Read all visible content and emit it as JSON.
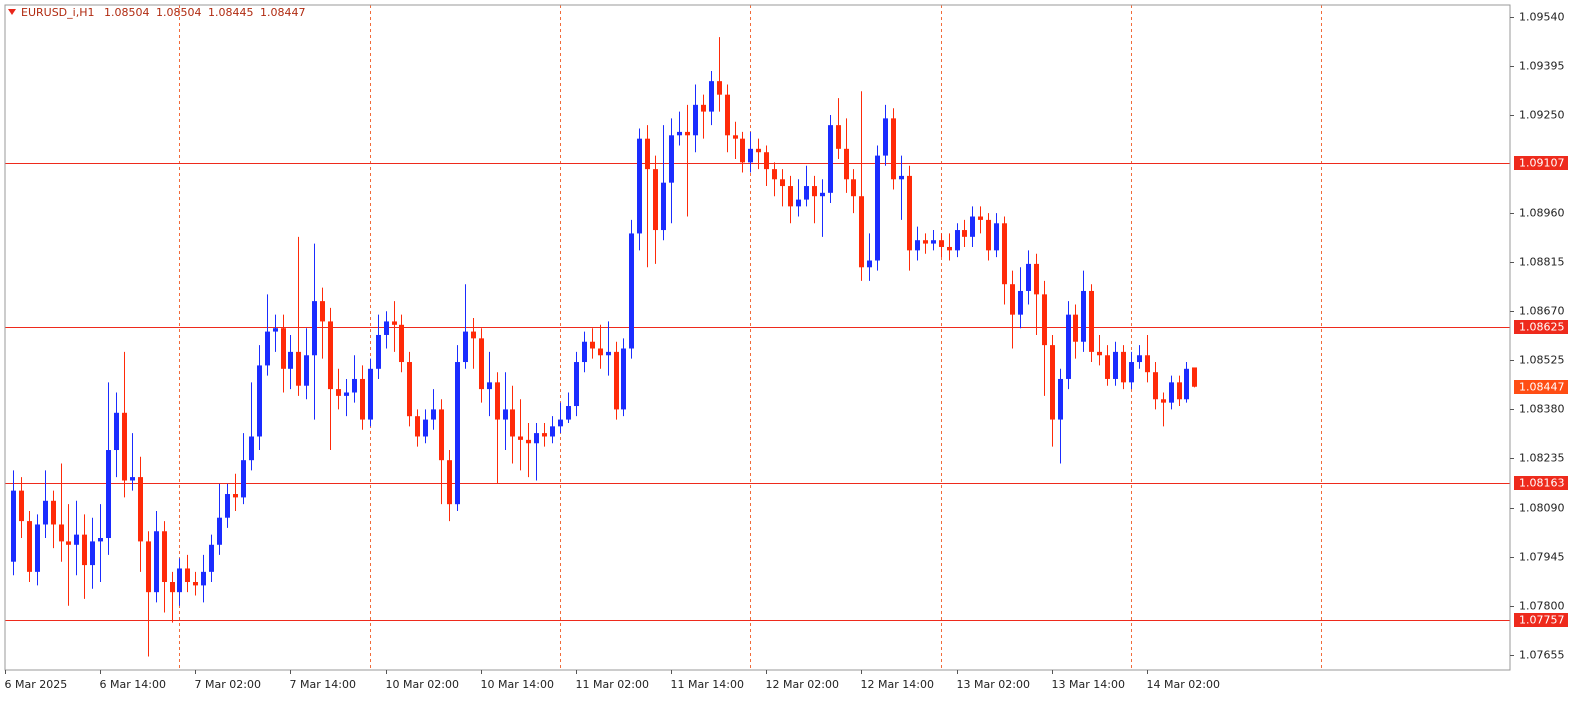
{
  "chart_data": {
    "type": "candlestick",
    "symbol": "EURUSD_i,H1",
    "open": [
      1.0793,
      1.0814,
      1.0805,
      1.079,
      1.0804,
      1.0811,
      1.0804,
      1.0799,
      1.0798,
      1.0801,
      1.0792,
      1.0799,
      1.08,
      1.0826,
      1.0837,
      1.0817,
      1.0818,
      1.0799,
      1.0784,
      1.0802,
      1.0787,
      1.0784,
      1.0791,
      1.0787,
      1.0786,
      1.079,
      1.0798,
      1.0806,
      1.0813,
      1.0812,
      1.0823,
      1.083,
      1.0851,
      1.0861,
      1.0862,
      1.085,
      1.0855,
      1.0845,
      1.0854,
      1.087,
      1.0864,
      1.0844,
      1.0842,
      1.0843,
      1.0847,
      1.0835,
      1.085,
      1.086,
      1.0864,
      1.0863,
      1.0852,
      1.0836,
      1.083,
      1.0835,
      1.0838,
      1.0823,
      1.081,
      1.0852,
      1.0861,
      1.0859,
      1.0844,
      1.0846,
      1.0835,
      1.0838,
      1.083,
      1.0829,
      1.0828,
      1.0831,
      1.083,
      1.0833,
      1.0835,
      1.0839,
      1.0852,
      1.0858,
      1.0856,
      1.0854,
      1.0855,
      1.0838,
      1.0856,
      1.089,
      1.0918,
      1.0909,
      1.0891,
      1.0905,
      1.0919,
      1.092,
      1.0919,
      1.0928,
      1.0926,
      1.0935,
      1.0931,
      1.0919,
      1.0918,
      1.0911,
      1.0915,
      1.0914,
      1.0909,
      1.0906,
      1.0904,
      1.0898,
      1.09,
      1.0904,
      1.0901,
      1.0902,
      1.0922,
      1.0915,
      1.0906,
      1.0901,
      1.088,
      1.0882,
      1.0913,
      1.0924,
      1.0906,
      1.0907,
      1.0885,
      1.0888,
      1.0887,
      1.0888,
      1.0886,
      1.0885,
      1.0891,
      1.0889,
      1.0895,
      1.0894,
      1.0885,
      1.0893,
      1.0875,
      1.0866,
      1.0873,
      1.0881,
      1.0872,
      1.0857,
      1.0835,
      1.0847,
      1.0866,
      1.0858,
      1.0873,
      1.0855,
      1.0854,
      1.0847,
      1.0855,
      1.0846,
      1.0852,
      1.0854,
      1.0849,
      1.0841,
      1.084,
      1.0846,
      1.0841,
      1.08504
    ],
    "high": [
      1.082,
      1.0818,
      1.0808,
      1.0807,
      1.082,
      1.0814,
      1.0822,
      1.081,
      1.0811,
      1.0807,
      1.0806,
      1.081,
      1.0846,
      1.0843,
      1.0855,
      1.0831,
      1.0824,
      1.0802,
      1.0808,
      1.0805,
      1.079,
      1.0794,
      1.0795,
      1.079,
      1.0795,
      1.0801,
      1.0816,
      1.0816,
      1.0819,
      1.0831,
      1.0846,
      1.0857,
      1.0872,
      1.0866,
      1.0866,
      1.086,
      1.0889,
      1.0862,
      1.0887,
      1.0874,
      1.0868,
      1.085,
      1.0847,
      1.0854,
      1.0851,
      1.0853,
      1.0866,
      1.0867,
      1.087,
      1.0866,
      1.0855,
      1.0838,
      1.0838,
      1.0844,
      1.0841,
      1.0826,
      1.0857,
      1.0875,
      1.0865,
      1.0862,
      1.0855,
      1.0849,
      1.0849,
      1.0845,
      1.0841,
      1.0834,
      1.0834,
      1.0834,
      1.0836,
      1.084,
      1.0843,
      1.0855,
      1.0861,
      1.0862,
      1.0863,
      1.0864,
      1.0858,
      1.0859,
      1.0894,
      1.0921,
      1.0922,
      1.0913,
      1.0922,
      1.0924,
      1.0926,
      1.0928,
      1.0934,
      1.0931,
      1.0938,
      1.0948,
      1.0934,
      1.0923,
      1.092,
      1.092,
      1.0918,
      1.0916,
      1.0911,
      1.0909,
      1.0907,
      1.0906,
      1.091,
      1.0907,
      1.0906,
      1.0925,
      1.093,
      1.0924,
      1.0909,
      1.0932,
      1.089,
      1.0916,
      1.0928,
      1.0927,
      1.0913,
      1.091,
      1.0892,
      1.089,
      1.0891,
      1.089,
      1.089,
      1.0893,
      1.0894,
      1.0898,
      1.0898,
      1.0896,
      1.0896,
      1.0895,
      1.0879,
      1.088,
      1.0885,
      1.0884,
      1.0876,
      1.086,
      1.085,
      1.087,
      1.0869,
      1.0879,
      1.0875,
      1.086,
      1.0857,
      1.0858,
      1.0857,
      1.0855,
      1.0857,
      1.086,
      1.0852,
      1.0843,
      1.0848,
      1.0848,
      1.0852,
      1.08504
    ],
    "low": [
      1.0789,
      1.08,
      1.0787,
      1.0786,
      1.08,
      1.0797,
      1.0793,
      1.078,
      1.0789,
      1.0782,
      1.0785,
      1.0787,
      1.0795,
      1.0818,
      1.0812,
      1.0814,
      1.079,
      1.0765,
      1.0781,
      1.0778,
      1.0775,
      1.078,
      1.0784,
      1.0783,
      1.0781,
      1.0787,
      1.0795,
      1.0803,
      1.0808,
      1.081,
      1.082,
      1.0826,
      1.0848,
      1.0855,
      1.0843,
      1.0844,
      1.0842,
      1.0841,
      1.0835,
      1.0853,
      1.0826,
      1.0838,
      1.0836,
      1.084,
      1.0832,
      1.0833,
      1.0847,
      1.0856,
      1.0855,
      1.0849,
      1.0833,
      1.0827,
      1.0828,
      1.0832,
      1.081,
      1.0805,
      1.0808,
      1.085,
      1.085,
      1.084,
      1.0836,
      1.0816,
      1.0826,
      1.0822,
      1.082,
      1.0818,
      1.0817,
      1.0827,
      1.0828,
      1.0831,
      1.0834,
      1.0836,
      1.0849,
      1.0853,
      1.085,
      1.0848,
      1.0835,
      1.0836,
      1.0853,
      1.0885,
      1.088,
      1.0881,
      1.0888,
      1.0893,
      1.0916,
      1.0895,
      1.0914,
      1.0918,
      1.0922,
      1.0926,
      1.0914,
      1.0912,
      1.0908,
      1.0908,
      1.0909,
      1.0904,
      1.0901,
      1.0898,
      1.0893,
      1.0895,
      1.0898,
      1.0893,
      1.0889,
      1.0899,
      1.0912,
      1.0902,
      1.0896,
      1.0876,
      1.0876,
      1.0879,
      1.091,
      1.0903,
      1.0894,
      1.0879,
      1.0882,
      1.0884,
      1.0885,
      1.0883,
      1.0882,
      1.0883,
      1.0886,
      1.0886,
      1.089,
      1.0882,
      1.0883,
      1.0869,
      1.0856,
      1.0862,
      1.0869,
      1.086,
      1.0842,
      1.0827,
      1.0822,
      1.0844,
      1.0853,
      1.0855,
      1.0852,
      1.0851,
      1.0845,
      1.0845,
      1.0844,
      1.0844,
      1.085,
      1.0846,
      1.0838,
      1.0833,
      1.0838,
      1.0839,
      1.084,
      1.08445
    ],
    "close": [
      1.0814,
      1.0805,
      1.079,
      1.0804,
      1.0811,
      1.0804,
      1.0799,
      1.0798,
      1.0801,
      1.0792,
      1.0799,
      1.08,
      1.0826,
      1.0837,
      1.0817,
      1.0818,
      1.0799,
      1.0784,
      1.0802,
      1.0787,
      1.0784,
      1.0791,
      1.0787,
      1.0786,
      1.079,
      1.0798,
      1.0806,
      1.0813,
      1.0812,
      1.0823,
      1.083,
      1.0851,
      1.0861,
      1.0862,
      1.085,
      1.0855,
      1.0845,
      1.0854,
      1.087,
      1.0864,
      1.0844,
      1.0842,
      1.0843,
      1.0847,
      1.0835,
      1.085,
      1.086,
      1.0864,
      1.0863,
      1.0852,
      1.0836,
      1.083,
      1.0835,
      1.0838,
      1.0823,
      1.081,
      1.0852,
      1.0861,
      1.0859,
      1.0844,
      1.0846,
      1.0835,
      1.0838,
      1.083,
      1.0829,
      1.0828,
      1.0831,
      1.083,
      1.0833,
      1.0835,
      1.0839,
      1.0852,
      1.0858,
      1.0856,
      1.0854,
      1.0855,
      1.0838,
      1.0856,
      1.089,
      1.0918,
      1.0909,
      1.0891,
      1.0905,
      1.0919,
      1.092,
      1.0919,
      1.0928,
      1.0926,
      1.0935,
      1.0931,
      1.0919,
      1.0918,
      1.0911,
      1.0915,
      1.0914,
      1.0909,
      1.0906,
      1.0904,
      1.0898,
      1.09,
      1.0904,
      1.0901,
      1.0902,
      1.0922,
      1.0915,
      1.0906,
      1.0901,
      1.088,
      1.0882,
      1.0913,
      1.0924,
      1.0906,
      1.0907,
      1.0885,
      1.0888,
      1.0887,
      1.0888,
      1.0886,
      1.0885,
      1.0891,
      1.0889,
      1.0895,
      1.0894,
      1.0885,
      1.0893,
      1.0875,
      1.0866,
      1.0873,
      1.0881,
      1.0872,
      1.0857,
      1.0835,
      1.0847,
      1.0866,
      1.0858,
      1.0873,
      1.0855,
      1.0854,
      1.0847,
      1.0855,
      1.0846,
      1.0852,
      1.0854,
      1.0849,
      1.0841,
      1.084,
      1.0846,
      1.0841,
      1.085,
      1.08447
    ],
    "up_color": "#1a2cff",
    "down_color": "#ff2a08",
    "levels": [
      1.09107,
      1.08625,
      1.08163,
      1.07757
    ],
    "level_color": "#ee2a1c",
    "price_label_color": "#ff4d14",
    "ylim": [
      1.0761,
      1.09575
    ],
    "yticks": [
      {
        "value": 1.0954,
        "label": "1.09540"
      },
      1.09395,
      {
        "value": 1.0925,
        "label": "1.09250"
      },
      {
        "value": 1.0896,
        "label": "1.08960"
      },
      1.08815,
      {
        "value": 1.0867,
        "label": "1.08670"
      },
      1.08525,
      {
        "value": 1.0838,
        "label": "1.08380"
      },
      1.08235,
      {
        "value": 1.0809,
        "label": "1.08090"
      },
      1.07945,
      {
        "value": 1.078,
        "label": "1.07800"
      },
      1.07655
    ],
    "xlim": [
      -1,
      188.8
    ],
    "xticks": [
      {
        "value": -1,
        "label": "6 Mar 2025"
      },
      {
        "value": 11,
        "label": "6 Mar 14:00"
      },
      {
        "value": 23,
        "label": "7 Mar 02:00"
      },
      {
        "value": 35,
        "label": "7 Mar 14:00"
      },
      {
        "value": 47,
        "label": "10 Mar 02:00"
      },
      {
        "value": 59,
        "label": "10 Mar 14:00"
      },
      {
        "value": 71,
        "label": "11 Mar 02:00"
      },
      {
        "value": 83,
        "label": "11 Mar 14:00"
      },
      {
        "value": 95,
        "label": "12 Mar 02:00"
      },
      {
        "value": 107,
        "label": "12 Mar 14:00"
      },
      {
        "value": 119,
        "label": "13 Mar 02:00"
      },
      {
        "value": 131,
        "label": "13 Mar 14:00"
      },
      {
        "value": 143,
        "label": "14 Mar 02:00"
      }
    ],
    "grid": true,
    "xgrid": [
      21,
      45,
      69,
      93,
      117,
      141,
      165
    ],
    "grid_color": "#f26b3a"
  }
}
